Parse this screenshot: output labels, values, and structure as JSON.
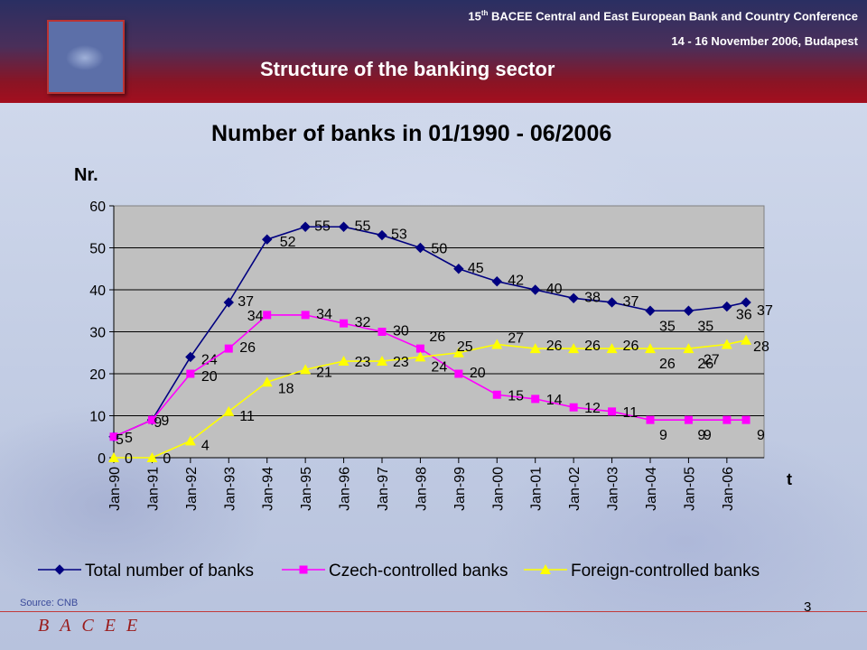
{
  "header": {
    "conference_main": "BACEE Central and East European Bank and Country Conference",
    "conference_number": "15",
    "conference_suffix": "th",
    "conference_date": "14 - 16 November 2006, Budapest",
    "slide_title": "Structure of the banking sector"
  },
  "colors": {
    "total": "#000080",
    "czech": "#ff00ff",
    "foreign": "#ffff00",
    "plot_bg": "#c0c0c0"
  },
  "chart_data": {
    "type": "line",
    "title": "Number of banks in 01/1990 - 06/2006",
    "ylabel": "Nr.",
    "xlabel": "t",
    "ylim": [
      0,
      60
    ],
    "yticks": [
      0,
      10,
      20,
      30,
      40,
      50,
      60
    ],
    "grid": "horizontal",
    "legend_position": "bottom",
    "categories": [
      "Jan-90",
      "Jan-91",
      "Jan-92",
      "Jan-93",
      "Jan-94",
      "Jan-95",
      "Jan-96",
      "Jan-97",
      "Jan-98",
      "Jan-99",
      "Jan-00",
      "Jan-01",
      "Jan-02",
      "Jan-03",
      "Jan-04",
      "Jan-05",
      "Jan-06"
    ],
    "x": [
      1990,
      1991,
      1992,
      1993,
      1994,
      1995,
      1996,
      1997,
      1998,
      1999,
      2000,
      2001,
      2002,
      2003,
      2004,
      2005,
      2006,
      2006.5
    ],
    "series": [
      {
        "name": "Total number of banks",
        "marker": "diamond",
        "values": [
          5,
          9,
          24,
          37,
          52,
          55,
          55,
          53,
          50,
          45,
          42,
          40,
          38,
          37,
          35,
          35,
          36,
          37
        ]
      },
      {
        "name": "Czech-controlled banks",
        "marker": "square",
        "values": [
          5,
          9,
          20,
          26,
          34,
          34,
          32,
          30,
          26,
          20,
          15,
          14,
          12,
          11,
          9,
          9,
          9,
          9
        ]
      },
      {
        "name": "Foreign-controlled banks",
        "marker": "triangle",
        "values": [
          0,
          0,
          4,
          11,
          18,
          21,
          23,
          23,
          24,
          25,
          27,
          26,
          26,
          26,
          26,
          26,
          27,
          28
        ]
      }
    ]
  },
  "footer": {
    "source": "Source: CNB",
    "page": "3",
    "brand": "BACEE"
  }
}
